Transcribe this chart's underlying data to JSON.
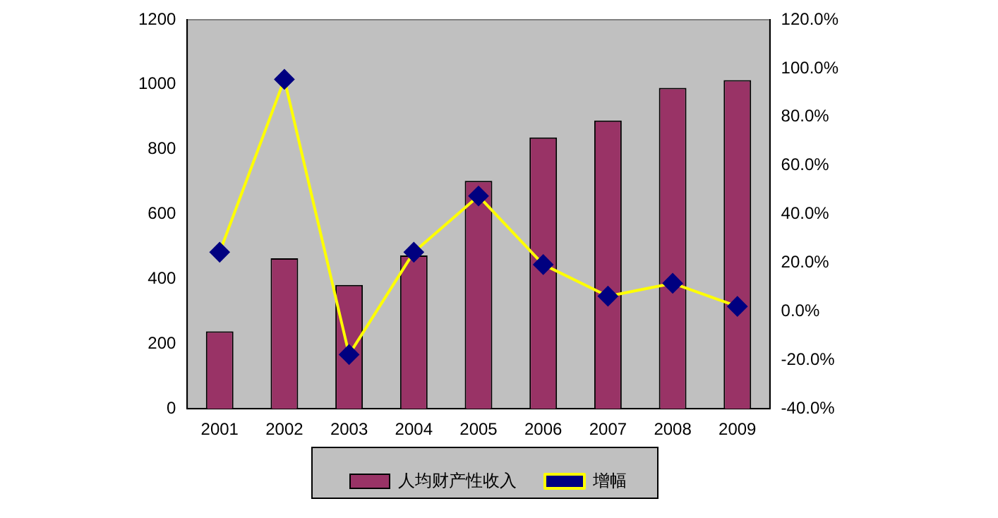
{
  "chart_data": {
    "type": "bar",
    "categories": [
      "2001",
      "2002",
      "2003",
      "2004",
      "2005",
      "2006",
      "2007",
      "2008",
      "2009"
    ],
    "series": [
      {
        "name": "人均财产性收入",
        "color": "#993366",
        "values": [
          239,
          464,
          382,
          473,
          703,
          837,
          889,
          990,
          1014
        ]
      },
      {
        "name": "增幅",
        "type": "line",
        "axis": "y2",
        "color": "#ffff00",
        "marker": "diamond",
        "values": [
          24.4,
          95.5,
          -17.7,
          24.4,
          47.5,
          19.3,
          6.3,
          11.6,
          2.1
        ]
      }
    ],
    "ylim": [
      0,
      1200
    ],
    "yticks": [
      0,
      200,
      400,
      600,
      800,
      1000,
      1200
    ],
    "y2lim": [
      -40,
      120
    ],
    "y2ticks": [
      {
        "value": -40,
        "label": "-40.0%"
      },
      {
        "value": -20,
        "label": "-20.0%"
      },
      {
        "value": 0,
        "label": "0.0%"
      },
      {
        "value": 20,
        "label": "20.0%"
      },
      {
        "value": 40,
        "label": "40.0%"
      },
      {
        "value": 60,
        "label": "60.0%"
      },
      {
        "value": 80,
        "label": "80.0%"
      },
      {
        "value": 100,
        "label": "100.0%"
      },
      {
        "value": 120,
        "label": "120.0%"
      }
    ],
    "grid": false,
    "legend": "bottom"
  }
}
